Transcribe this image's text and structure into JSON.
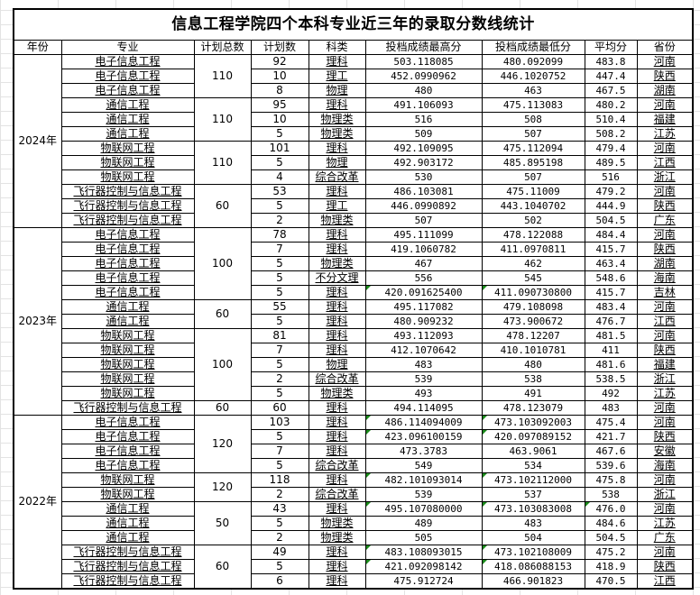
{
  "title": "信息工程学院四个本科专业近三年的录取分数线统计",
  "headers": [
    "年份",
    "专业",
    "计划总数",
    "计划数",
    "科类",
    "投档成绩最高分",
    "投档成绩最低分",
    "平均分",
    "省份"
  ],
  "years": [
    {
      "year": "2024年",
      "groups": [
        {
          "total": "110",
          "rows": [
            {
              "major": "电子信息工程",
              "plan": "92",
              "subject": "理科",
              "high": "503.118085",
              "low": "480.092099",
              "avg": "483.8",
              "province": "河南"
            },
            {
              "major": "电子信息工程",
              "plan": "10",
              "subject": "理工",
              "high": "452.0990962",
              "low": "446.1020752",
              "avg": "447.4",
              "province": "陕西"
            },
            {
              "major": "电子信息工程",
              "plan": "8",
              "subject": "物理",
              "high": "480",
              "low": "463",
              "avg": "467.5",
              "province": "湖南"
            }
          ]
        },
        {
          "total": "110",
          "rows": [
            {
              "major": "通信工程",
              "plan": "95",
              "subject": "理科",
              "high": "491.106093",
              "low": "475.113083",
              "avg": "480.2",
              "province": "河南"
            },
            {
              "major": "通信工程",
              "plan": "10",
              "subject": "物理类",
              "high": "516",
              "low": "508",
              "avg": "510.4",
              "province": "福建"
            },
            {
              "major": "通信工程",
              "plan": "5",
              "subject": "物理类",
              "high": "509",
              "low": "507",
              "avg": "508.2",
              "province": "江苏"
            }
          ]
        },
        {
          "total": "110",
          "rows": [
            {
              "major": "物联网工程",
              "plan": "101",
              "subject": "理科",
              "high": "492.109095",
              "low": "475.112094",
              "avg": "479.4",
              "province": "河南"
            },
            {
              "major": "物联网工程",
              "plan": "5",
              "subject": "物理",
              "high": "492.903172",
              "low": "485.895198",
              "avg": "489.5",
              "province": "江西"
            },
            {
              "major": "物联网工程",
              "plan": "4",
              "subject": "综合改革",
              "high": "530",
              "low": "507",
              "avg": "516",
              "province": "浙江"
            }
          ]
        },
        {
          "total": "60",
          "rows": [
            {
              "major": "飞行器控制与信息工程",
              "plan": "53",
              "subject": "理科",
              "high": "486.103081",
              "low": "475.11009",
              "avg": "479.2",
              "province": "河南"
            },
            {
              "major": "飞行器控制与信息工程",
              "plan": "5",
              "subject": "理工",
              "high": "446.0990892",
              "low": "443.1040702",
              "avg": "444.9",
              "province": "陕西"
            },
            {
              "major": "飞行器控制与信息工程",
              "plan": "2",
              "subject": "物理类",
              "high": "507",
              "low": "502",
              "avg": "504.5",
              "province": "广东"
            }
          ]
        }
      ]
    },
    {
      "year": "2023年",
      "groups": [
        {
          "total": "100",
          "rows": [
            {
              "major": "电子信息工程",
              "plan": "78",
              "subject": "理科",
              "high": "495.111099",
              "low": "478.122088",
              "avg": "484.4",
              "province": "河南"
            },
            {
              "major": "电子信息工程",
              "plan": "7",
              "subject": "理科",
              "high": "419.1060782",
              "low": "411.0970811",
              "avg": "415.7",
              "province": "陕西"
            },
            {
              "major": "电子信息工程",
              "plan": "5",
              "subject": "物理类",
              "high": "467",
              "low": "462",
              "avg": "463.4",
              "province": "湖南"
            },
            {
              "major": "电子信息工程",
              "plan": "5",
              "subject": "不分文理",
              "high": "556",
              "low": "545",
              "avg": "548.6",
              "province": "海南"
            },
            {
              "major": "电子信息工程",
              "plan": "5",
              "subject": "理科",
              "high": "420.091625400",
              "low": "411.090730800",
              "avg": "415.7",
              "province": "吉林",
              "marks": [
                "high",
                "low"
              ]
            }
          ]
        },
        {
          "total": "60",
          "rows": [
            {
              "major": "通信工程",
              "plan": "55",
              "subject": "理科",
              "high": "495.117082",
              "low": "479.108098",
              "avg": "483.4",
              "province": "河南"
            },
            {
              "major": "通信工程",
              "plan": "5",
              "subject": "理科",
              "high": "480.909232",
              "low": "473.900672",
              "avg": "476.7",
              "province": "江西"
            }
          ]
        },
        {
          "total": "100",
          "rows": [
            {
              "major": "物联网工程",
              "plan": "81",
              "subject": "理科",
              "high": "493.112093",
              "low": "478.12207",
              "avg": "481.5",
              "province": "河南"
            },
            {
              "major": "物联网工程",
              "plan": "7",
              "subject": "理科",
              "high": "412.1070642",
              "low": "410.1010781",
              "avg": "411",
              "province": "陕西"
            },
            {
              "major": "物联网工程",
              "plan": "5",
              "subject": "物理",
              "high": "483",
              "low": "480",
              "avg": "481.6",
              "province": "福建"
            },
            {
              "major": "物联网工程",
              "plan": "2",
              "subject": "综合改革",
              "high": "539",
              "low": "538",
              "avg": "538.5",
              "province": "浙江"
            },
            {
              "major": "物联网工程",
              "plan": "5",
              "subject": "物理类",
              "high": "493",
              "low": "491",
              "avg": "492",
              "province": "江苏"
            }
          ]
        },
        {
          "total": "60",
          "rows": [
            {
              "major": "飞行器控制与信息工程",
              "plan": "60",
              "subject": "理科",
              "high": "494.114095",
              "low": "478.123079",
              "avg": "483",
              "province": "河南"
            }
          ]
        }
      ]
    },
    {
      "year": "2022年",
      "groups": [
        {
          "total": "120",
          "rows": [
            {
              "major": "电子信息工程",
              "plan": "103",
              "subject": "理科",
              "high": "486.114094009",
              "low": "473.103092003",
              "avg": "475.4",
              "province": "河南",
              "marks": [
                "high",
                "low"
              ]
            },
            {
              "major": "电子信息工程",
              "plan": "5",
              "subject": "理科",
              "high": "423.096100159",
              "low": "420.097089152",
              "avg": "421.7",
              "province": "陕西",
              "marks": [
                "high",
                "low"
              ]
            },
            {
              "major": "电子信息工程",
              "plan": "7",
              "subject": "理科",
              "high": "473.3783",
              "low": "463.9061",
              "avg": "467.6",
              "province": "安徽"
            },
            {
              "major": "电子信息工程",
              "plan": "5",
              "subject": "综合改革",
              "high": "549",
              "low": "534",
              "avg": "539.6",
              "province": "海南"
            }
          ]
        },
        {
          "total": "120",
          "rows": [
            {
              "major": "物联网工程",
              "plan": "118",
              "subject": "理科",
              "high": "482.101093014",
              "low": "473.102112000",
              "avg": "475.8",
              "province": "河南",
              "marks": [
                "high",
                "low"
              ]
            },
            {
              "major": "物联网工程",
              "plan": "2",
              "subject": "综合改革",
              "high": "539",
              "low": "537",
              "avg": "538",
              "province": "浙江"
            }
          ]
        },
        {
          "total": "50",
          "rows": [
            {
              "major": "通信工程",
              "plan": "43",
              "subject": "理科",
              "high": "495.107080000",
              "low": "473.103083008",
              "avg": "476.0",
              "province": "河南",
              "marks": [
                "high",
                "low",
                "avg"
              ]
            },
            {
              "major": "通信工程",
              "plan": "5",
              "subject": "物理类",
              "high": "489",
              "low": "483",
              "avg": "484.6",
              "province": "江苏"
            },
            {
              "major": "通信工程",
              "plan": "2",
              "subject": "物理类",
              "high": "505",
              "low": "504",
              "avg": "504.5",
              "province": "广东"
            }
          ]
        },
        {
          "total": "60",
          "rows": [
            {
              "major": "飞行器控制与信息工程",
              "plan": "49",
              "subject": "理科",
              "high": "483.108093015",
              "low": "473.102108009",
              "avg": "475.2",
              "province": "河南",
              "marks": [
                "high",
                "low"
              ]
            },
            {
              "major": "飞行器控制与信息工程",
              "plan": "5",
              "subject": "理科",
              "high": "421.092098142",
              "low": "418.086088153",
              "avg": "418.9",
              "province": "陕西",
              "marks": [
                "high",
                "low"
              ]
            },
            {
              "major": "飞行器控制与信息工程",
              "plan": "6",
              "subject": "理科",
              "high": "475.912724",
              "low": "466.901823",
              "avg": "470.5",
              "province": "江西"
            }
          ]
        }
      ]
    }
  ]
}
